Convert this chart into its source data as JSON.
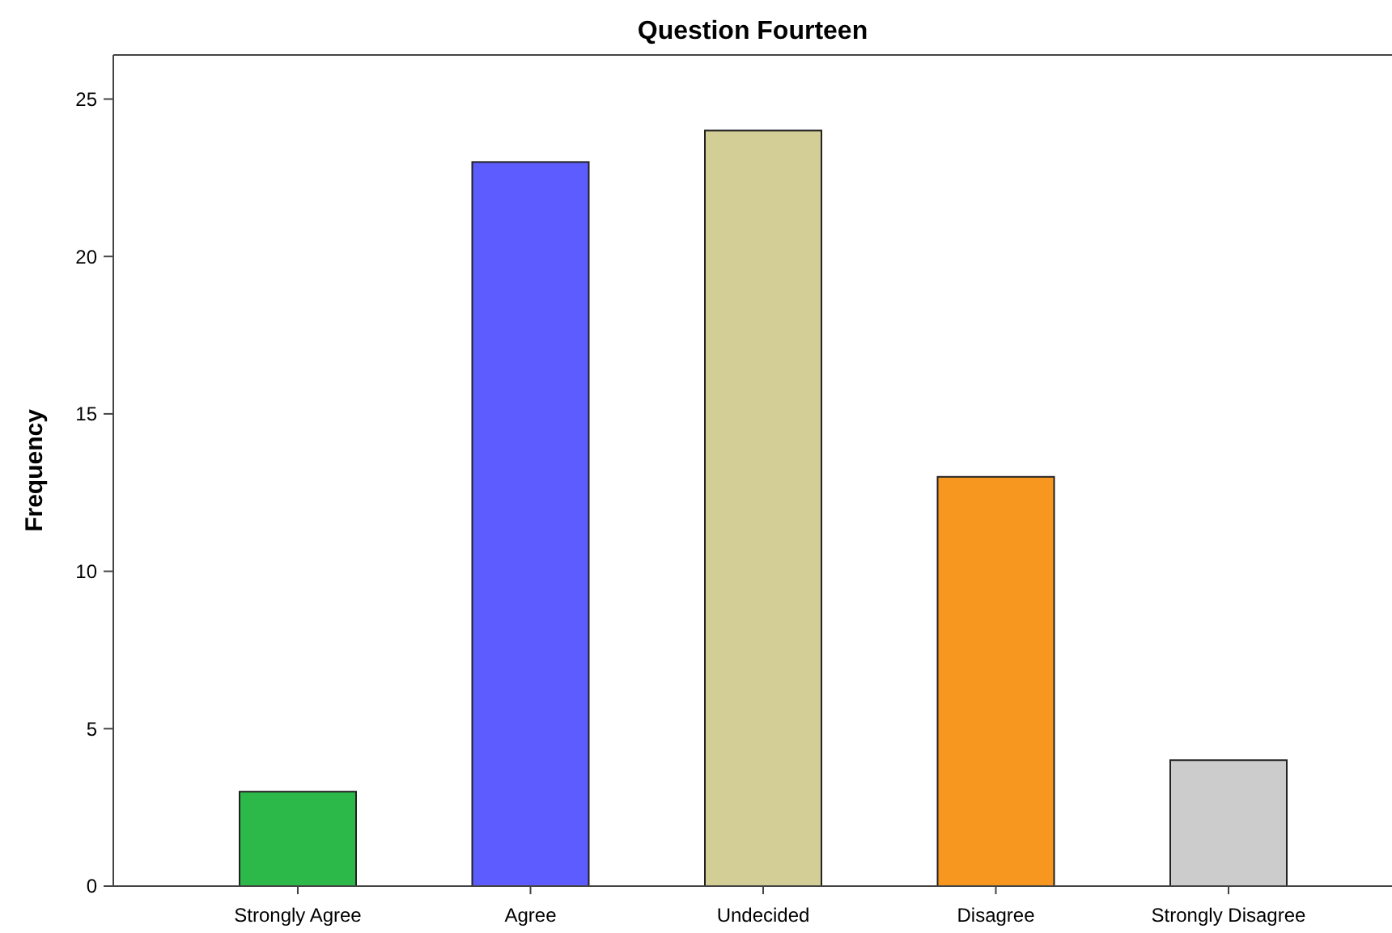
{
  "chart_data": {
    "type": "bar",
    "title": "Question Fourteen",
    "ylabel": "Frequency",
    "categories": [
      "Strongly Agree",
      "Agree",
      "Undecided",
      "Disagree",
      "Strongly Disagree"
    ],
    "values": [
      3,
      23,
      24,
      13,
      4
    ],
    "colors": [
      "#2db84a",
      "#5c5cff",
      "#d3cd96",
      "#f7971f",
      "#cccccc"
    ],
    "ylim": [
      0,
      26.4
    ],
    "yticks": [
      0,
      5,
      10,
      15,
      20,
      25
    ],
    "grid": false
  }
}
